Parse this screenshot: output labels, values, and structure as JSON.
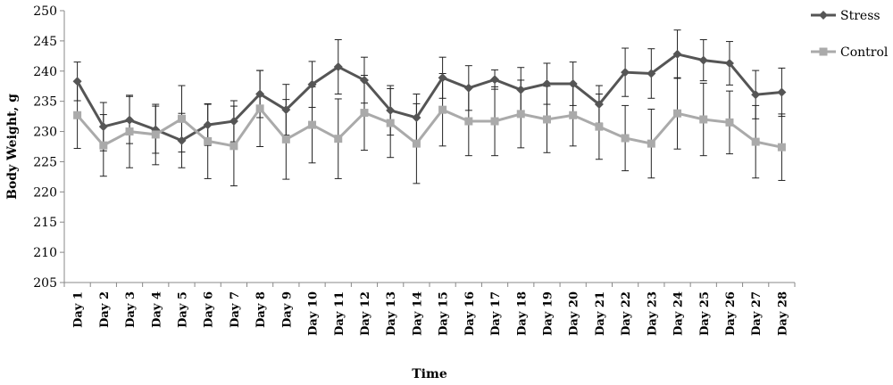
{
  "chart_data": {
    "type": "line",
    "xlabel": "Time",
    "ylabel": "Body Weight, g",
    "ylim": [
      205,
      250
    ],
    "yticks": [
      205,
      210,
      215,
      220,
      225,
      230,
      235,
      240,
      245,
      250
    ],
    "grid": false,
    "legend_position": "top-right",
    "categories": [
      "Day 1",
      "Day 2",
      "Day 3",
      "Day 4",
      "Day 5",
      "Day 6",
      "Day 7",
      "Day 8",
      "Day 9",
      "Day 10",
      "Day 11",
      "Day 12",
      "Day 13",
      "Day 14",
      "Day 15",
      "Day 16",
      "Day 17",
      "Day 18",
      "Day 19",
      "Day 20",
      "Day 21",
      "Day 22",
      "Day 23",
      "Day 24",
      "Day 25",
      "Day 26",
      "Day 27",
      "Day 28"
    ],
    "series": [
      {
        "name": "Stress",
        "color": "#555555",
        "marker": "diamond",
        "values": [
          238.3,
          230.8,
          231.9,
          230.3,
          228.5,
          231.1,
          231.7,
          236.2,
          233.6,
          237.8,
          240.7,
          238.5,
          233.5,
          232.3,
          238.9,
          237.2,
          238.6,
          236.9,
          237.9,
          237.9,
          234.5,
          239.8,
          239.6,
          242.8,
          241.8,
          241.3,
          236.1,
          236.5
        ],
        "errors": [
          3.2,
          4.0,
          3.9,
          3.9,
          4.5,
          3.4,
          3.4,
          3.9,
          4.2,
          3.8,
          4.5,
          3.8,
          4.1,
          3.9,
          3.4,
          3.7,
          1.6,
          3.7,
          3.4,
          3.6,
          3.1,
          4.0,
          4.1,
          4.0,
          3.4,
          3.6,
          4.0,
          4.0
        ]
      },
      {
        "name": "Control",
        "color": "#aaaaaa",
        "marker": "square",
        "values": [
          232.7,
          227.7,
          230.0,
          229.5,
          232.1,
          228.4,
          227.6,
          233.8,
          228.7,
          231.1,
          228.8,
          233.1,
          231.4,
          228.0,
          233.6,
          231.7,
          231.7,
          232.9,
          232.0,
          232.7,
          230.8,
          228.9,
          228.0,
          233.0,
          232.0,
          231.5,
          228.3,
          227.4
        ],
        "errors": [
          5.5,
          5.1,
          6.0,
          5.0,
          5.5,
          6.2,
          6.6,
          6.3,
          6.6,
          6.3,
          6.6,
          6.2,
          5.7,
          6.6,
          6.0,
          5.7,
          5.7,
          5.6,
          5.5,
          5.1,
          5.4,
          5.4,
          5.7,
          5.9,
          6.0,
          5.2,
          6.0,
          5.5
        ]
      }
    ]
  }
}
